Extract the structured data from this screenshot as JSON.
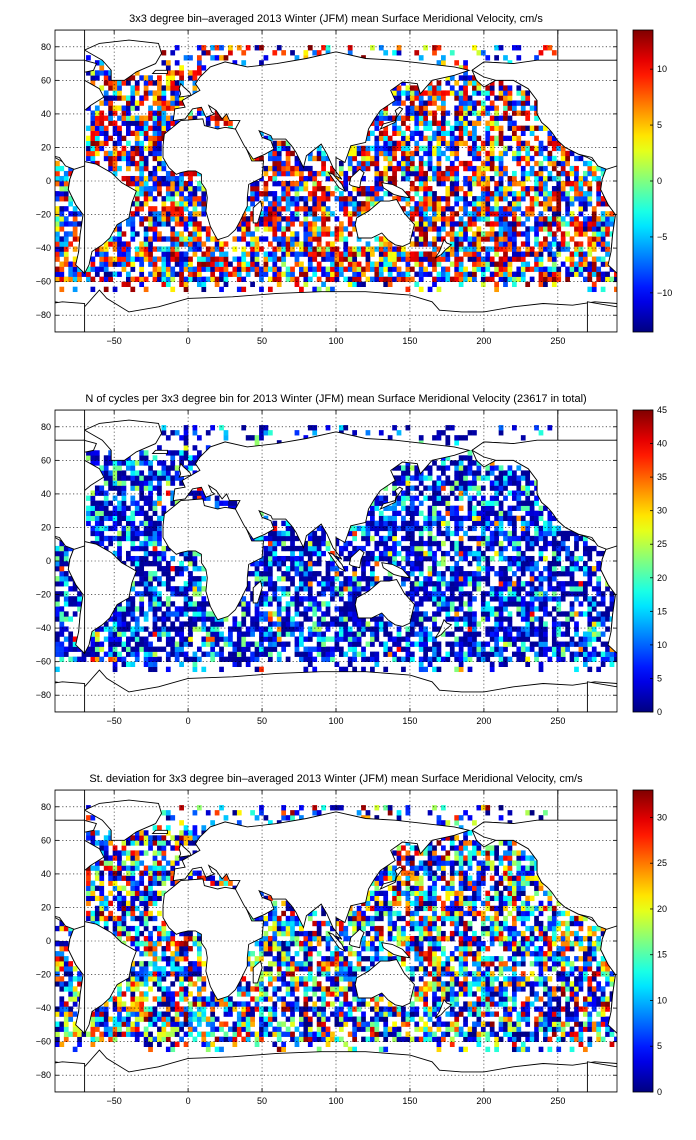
{
  "chart_data": [
    {
      "type": "heatmap",
      "title": "3x3 degree bin–averaged 2013 Winter (JFM) mean Surface Meridional Velocity, cm/s",
      "xlim": [
        -90,
        290
      ],
      "ylim": [
        -90,
        90
      ],
      "x_ticks": [
        -50,
        0,
        50,
        100,
        150,
        200,
        250
      ],
      "y_ticks": [
        80,
        60,
        40,
        20,
        0,
        -20,
        -40,
        -60,
        -80
      ],
      "bin_size_deg": 3,
      "colormap": "jet",
      "colorbar": {
        "min": -13.5,
        "max": 13.5,
        "ticks": [
          10,
          5,
          0,
          -5,
          -10
        ]
      },
      "grid": true,
      "value_pattern": "mixed-sign"
    },
    {
      "type": "heatmap",
      "title": "N of cycles per 3x3 degree bin for 2013 Winter (JFM) mean Surface Meridional Velocity (23617 in total)",
      "xlim": [
        -90,
        290
      ],
      "ylim": [
        -90,
        90
      ],
      "x_ticks": [
        -50,
        0,
        50,
        100,
        150,
        200,
        250
      ],
      "y_ticks": [
        80,
        60,
        40,
        20,
        0,
        -20,
        -40,
        -60,
        -80
      ],
      "bin_size_deg": 3,
      "colormap": "jet",
      "colorbar": {
        "min": 0,
        "max": 45,
        "ticks": [
          45,
          40,
          35,
          30,
          25,
          20,
          15,
          10,
          5,
          0
        ]
      },
      "grid": true,
      "total_cycles": 23617,
      "value_pattern": "low-counts"
    },
    {
      "type": "heatmap",
      "title": "St. deviation for 3x3 degree bin–averaged 2013 Winter (JFM) mean Surface Meridional Velocity, cm/s",
      "xlim": [
        -90,
        290
      ],
      "ylim": [
        -90,
        90
      ],
      "x_ticks": [
        -50,
        0,
        50,
        100,
        150,
        200,
        250
      ],
      "y_ticks": [
        80,
        60,
        40,
        20,
        0,
        -20,
        -40,
        -60,
        -80
      ],
      "bin_size_deg": 3,
      "colormap": "jet",
      "colorbar": {
        "min": 0,
        "max": 33,
        "ticks": [
          30,
          25,
          20,
          15,
          10,
          5,
          0
        ]
      },
      "grid": true,
      "value_pattern": "positive-spread"
    }
  ]
}
